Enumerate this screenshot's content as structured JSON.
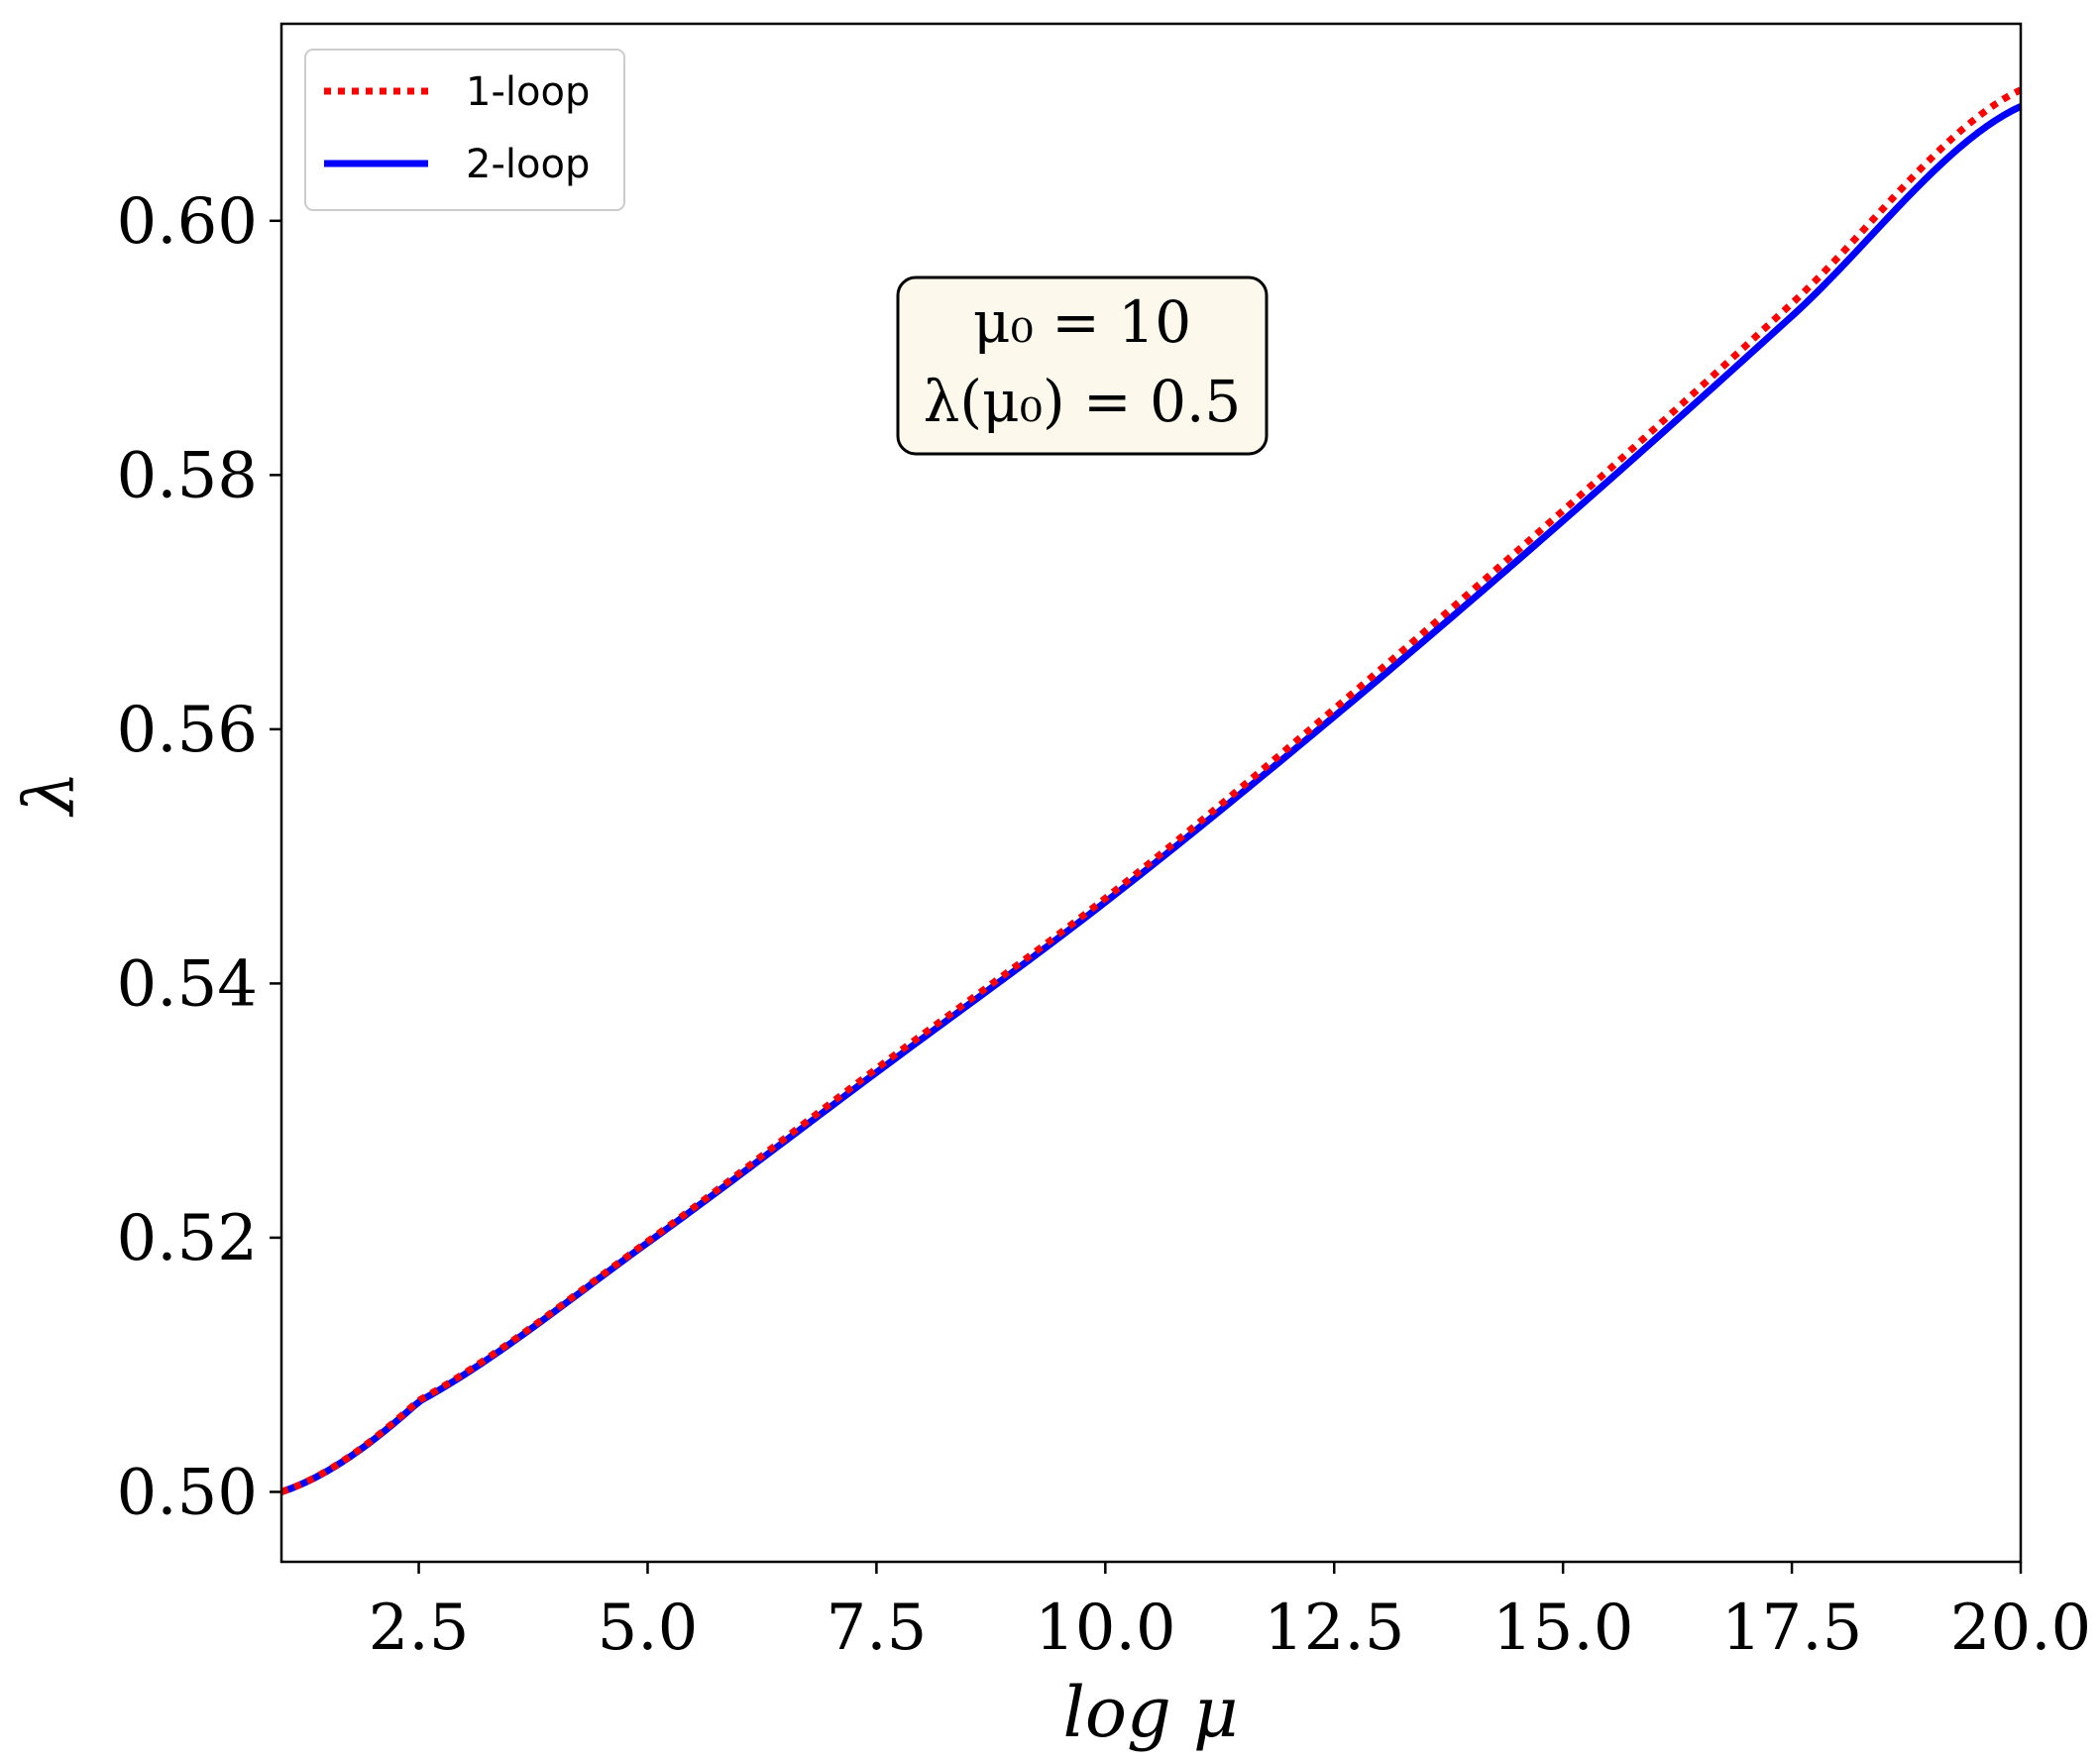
{
  "chart_data": {
    "type": "line",
    "xlabel": "log μ",
    "ylabel": "λ",
    "xlim": [
      1.0,
      20.0
    ],
    "ylim": [
      0.4945,
      0.6155
    ],
    "xticks": [
      2.5,
      5.0,
      7.5,
      10.0,
      12.5,
      15.0,
      17.5,
      20.0
    ],
    "xtick_labels": [
      "2.5",
      "5.0",
      "7.5",
      "10.0",
      "12.5",
      "15.0",
      "17.5",
      "20.0"
    ],
    "yticks": [
      0.5,
      0.52,
      0.54,
      0.56,
      0.58,
      0.6
    ],
    "ytick_labels": [
      "0.50",
      "0.52",
      "0.54",
      "0.56",
      "0.58",
      "0.60"
    ],
    "grid": false,
    "legend_position": "top-left",
    "annotation": {
      "line1": "μ₀ = 10",
      "line2": "λ(μ₀) = 0.5"
    },
    "series": [
      {
        "name": "1-loop",
        "color": "#ff0000",
        "style": "dotted",
        "x": [
          1,
          2.5,
          5,
          7.5,
          10,
          12.5,
          15,
          17.5,
          20
        ],
        "y": [
          0.5,
          0.5072,
          0.5197,
          0.5333,
          0.5467,
          0.5616,
          0.5772,
          0.5935,
          0.6103
        ]
      },
      {
        "name": "2-loop",
        "color": "#0000ff",
        "style": "solid",
        "x": [
          1,
          2.5,
          5,
          7.5,
          10,
          12.5,
          15,
          17.5,
          20
        ],
        "y": [
          0.5,
          0.5071,
          0.5196,
          0.533,
          0.5464,
          0.561,
          0.5764,
          0.5925,
          0.609
        ]
      }
    ]
  }
}
